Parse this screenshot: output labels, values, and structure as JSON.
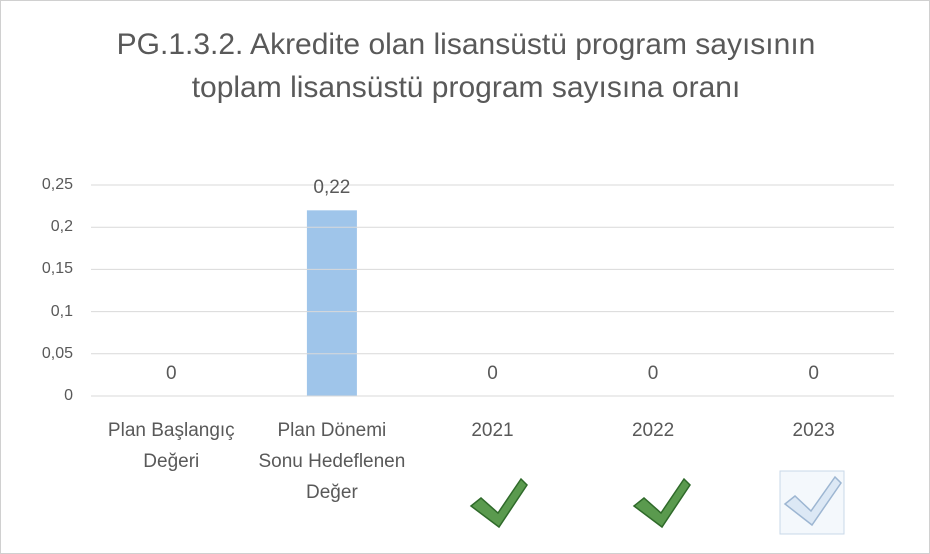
{
  "chart_data": {
    "type": "bar",
    "title": "PG.1.3.2. Akredite olan lisansüstü program sayısının toplam lisansüstü program sayısına oranı",
    "categories": [
      "Plan Başlangıç Değeri",
      "Plan Dönemi Sonu Hedeflenen Değer",
      "2021",
      "2022",
      "2023"
    ],
    "values": [
      0,
      0.22,
      0,
      0,
      0
    ],
    "value_labels": [
      "0",
      "0,22",
      "0",
      "0",
      "0"
    ],
    "color": "#9fc5ea",
    "ylim": [
      0,
      0.25
    ],
    "yticks": [
      0,
      {
        "value": 0.05,
        "label": "0,05"
      },
      {
        "value": 0.1,
        "label": "0,1"
      },
      {
        "value": 0.15,
        "label": "0,15"
      },
      {
        "value": 0.2,
        "label": "0,2"
      },
      {
        "value": 0.25,
        "label": "0,25"
      }
    ],
    "grid": true
  }
}
